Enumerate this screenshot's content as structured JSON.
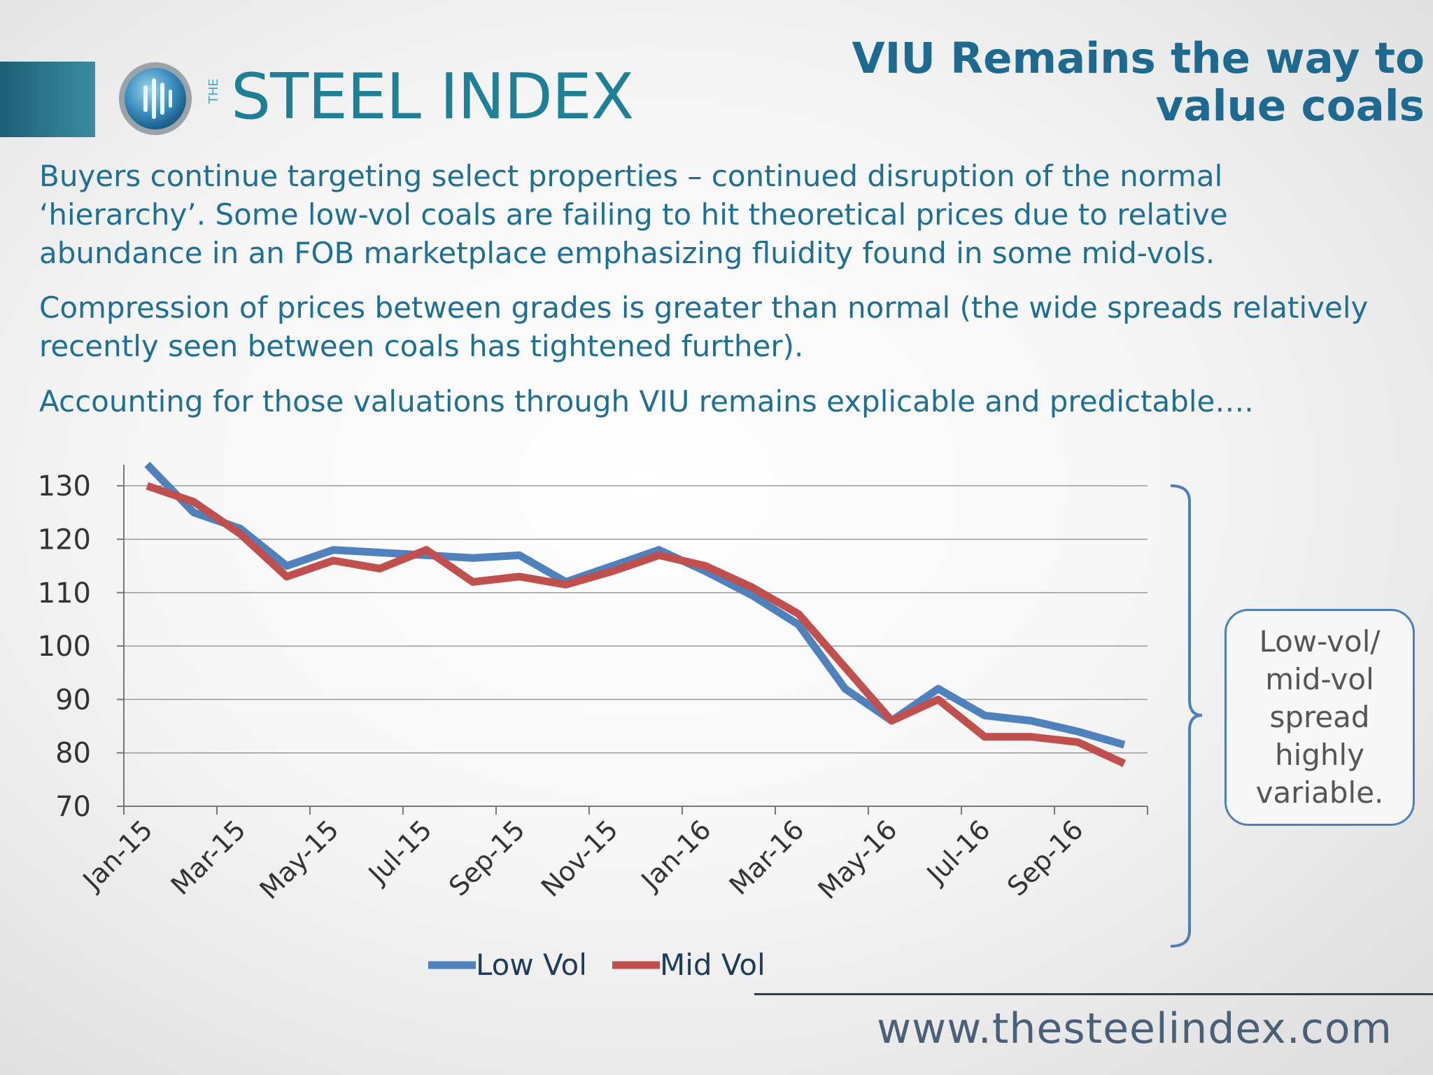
{
  "logo": {
    "prefix": "THE",
    "name": "STEEL INDEX"
  },
  "title": "VIU Remains the way to value coals",
  "paragraphs": [
    "Buyers continue targeting select properties – continued disruption of the normal ‘hierarchy’. Some low-vol coals are failing to hit theoretical prices due to relative abundance in an FOB marketplace emphasizing fluidity found in some mid-vols.",
    "Compression of prices between grades is greater than normal (the wide spreads relatively recently seen between coals has tightened further).",
    "Accounting for those valuations through VIU remains explicable and predictable…."
  ],
  "note": "Low-vol/ mid-vol spread highly variable.",
  "footer_url": "www.thesteelindex.com",
  "colors": {
    "low_vol": "#4f81bd",
    "mid_vol": "#c0504d",
    "title": "#1d6990",
    "text": "#1f6f93"
  },
  "chart_data": {
    "type": "line",
    "title": "",
    "xlabel": "",
    "ylabel": "",
    "ylim": [
      70,
      135
    ],
    "yticks": [
      70,
      80,
      90,
      100,
      110,
      120,
      130
    ],
    "x_tick_labels": [
      "Jan-15",
      "Mar-15",
      "May-15",
      "Jul-15",
      "Sep-15",
      "Nov-15",
      "Jan-16",
      "Mar-16",
      "May-16",
      "Jul-16",
      "Sep-16"
    ],
    "x": [
      "Jan-15",
      "Feb-15",
      "Mar-15",
      "Apr-15",
      "May-15",
      "Jun-15",
      "Jul-15",
      "Aug-15",
      "Sep-15",
      "Oct-15",
      "Nov-15",
      "Dec-15",
      "Jan-16",
      "Feb-16",
      "Mar-16",
      "Apr-16",
      "May-16",
      "Jun-16",
      "Jul-16",
      "Aug-16",
      "Sep-16",
      "Oct-16"
    ],
    "series": [
      {
        "name": "Low Vol",
        "values": [
          134,
          125,
          122,
          115,
          118,
          117.5,
          117,
          116.5,
          117,
          112,
          115,
          118,
          114,
          109.5,
          104,
          92,
          86,
          92,
          87,
          86,
          84,
          81.5
        ]
      },
      {
        "name": "Mid Vol",
        "values": [
          130,
          127,
          121,
          113,
          116,
          114.5,
          118,
          112,
          113,
          111.5,
          114,
          117,
          115,
          111,
          106,
          96,
          86,
          90,
          83,
          83,
          82,
          78
        ]
      }
    ],
    "legend": "bottom-center",
    "grid": true
  }
}
